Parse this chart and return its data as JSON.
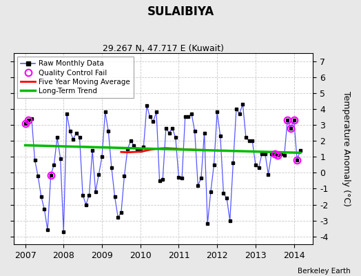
{
  "title": "SULAIBIYA",
  "subtitle": "29.267 N, 47.717 E (Kuwait)",
  "ylabel": "Temperature Anomaly (°C)",
  "credit": "Berkeley Earth",
  "ylim": [
    -4.5,
    7.5
  ],
  "yticks": [
    -4,
    -3,
    -2,
    -1,
    0,
    1,
    2,
    3,
    4,
    5,
    6,
    7
  ],
  "xlim": [
    2006.7,
    2014.5
  ],
  "xticks": [
    2007,
    2008,
    2009,
    2010,
    2011,
    2012,
    2013,
    2014
  ],
  "background_color": "#e8e8e8",
  "plot_bg_color": "#ffffff",
  "raw_color": "#5555ff",
  "raw_marker_color": "#000000",
  "qc_color": "#ff00ff",
  "moving_avg_color": "#ff0000",
  "trend_color": "#00bb00",
  "raw_data": [
    2007.0,
    3.1,
    2007.083,
    3.3,
    2007.167,
    3.4,
    2007.25,
    0.8,
    2007.333,
    -0.2,
    2007.417,
    -1.5,
    2007.5,
    -2.3,
    2007.583,
    -3.6,
    2007.667,
    -0.15,
    2007.75,
    0.5,
    2007.833,
    2.2,
    2007.917,
    0.9,
    2008.0,
    -3.7,
    2008.083,
    3.7,
    2008.167,
    2.6,
    2008.25,
    2.1,
    2008.333,
    2.5,
    2008.417,
    2.2,
    2008.5,
    -1.4,
    2008.583,
    -2.0,
    2008.667,
    -1.4,
    2008.75,
    1.4,
    2008.833,
    -1.2,
    2008.917,
    -0.1,
    2009.0,
    1.0,
    2009.083,
    3.8,
    2009.167,
    2.6,
    2009.25,
    0.3,
    2009.333,
    -1.5,
    2009.417,
    -2.8,
    2009.5,
    -2.5,
    2009.583,
    -0.2,
    2009.667,
    1.5,
    2009.75,
    2.0,
    2009.833,
    1.7,
    2009.917,
    1.5,
    2010.0,
    1.4,
    2010.083,
    1.6,
    2010.167,
    4.2,
    2010.25,
    3.5,
    2010.333,
    3.2,
    2010.417,
    3.8,
    2010.5,
    -0.5,
    2010.583,
    -0.4,
    2010.667,
    2.8,
    2010.75,
    2.5,
    2010.833,
    2.8,
    2010.917,
    2.2,
    2011.0,
    -0.3,
    2011.083,
    -0.35,
    2011.167,
    3.5,
    2011.25,
    3.5,
    2011.333,
    3.7,
    2011.417,
    2.6,
    2011.5,
    -0.8,
    2011.583,
    -0.35,
    2011.667,
    2.5,
    2011.75,
    -3.2,
    2011.833,
    -1.2,
    2011.917,
    0.5,
    2012.0,
    3.8,
    2012.083,
    2.3,
    2012.167,
    -1.3,
    2012.25,
    -1.6,
    2012.333,
    -3.0,
    2012.417,
    0.6,
    2012.5,
    4.0,
    2012.583,
    3.7,
    2012.667,
    4.3,
    2012.75,
    2.2,
    2012.833,
    2.0,
    2012.917,
    2.0,
    2013.0,
    0.5,
    2013.083,
    0.3,
    2013.167,
    1.2,
    2013.25,
    1.2,
    2013.333,
    -0.1,
    2013.417,
    1.2,
    2013.5,
    1.2,
    2013.583,
    1.1,
    2013.667,
    1.2,
    2013.75,
    1.1,
    2013.833,
    3.3,
    2013.917,
    2.8,
    2014.0,
    3.3,
    2014.083,
    0.8,
    2014.167,
    1.4
  ],
  "qc_fails": [
    [
      2007.0,
      3.1
    ],
    [
      2007.083,
      3.3
    ],
    [
      2007.667,
      -0.15
    ],
    [
      2013.5,
      1.2
    ],
    [
      2013.583,
      1.1
    ],
    [
      2013.833,
      3.3
    ],
    [
      2013.917,
      2.8
    ],
    [
      2014.0,
      3.3
    ],
    [
      2014.083,
      0.8
    ]
  ],
  "moving_avg_x": [
    2009.5,
    2009.583,
    2009.667,
    2009.75,
    2009.833,
    2009.917,
    2010.0,
    2010.083,
    2010.167,
    2010.25,
    2010.333,
    2010.417,
    2010.5,
    2010.583,
    2010.667,
    2010.75,
    2010.833,
    2010.917,
    2011.0,
    2011.083,
    2011.167,
    2011.25,
    2011.333,
    2011.417,
    2011.5,
    2011.583,
    2011.667
  ],
  "moving_avg_y": [
    1.3,
    1.29,
    1.28,
    1.29,
    1.3,
    1.31,
    1.32,
    1.35,
    1.4,
    1.44,
    1.47,
    1.5,
    1.52,
    1.53,
    1.54,
    1.53,
    1.52,
    1.51,
    1.49,
    1.48,
    1.47,
    1.46,
    1.45,
    1.44,
    1.43,
    1.43,
    1.43
  ],
  "trend_x": [
    2007.0,
    2014.167
  ],
  "trend_y": [
    1.72,
    1.25
  ]
}
